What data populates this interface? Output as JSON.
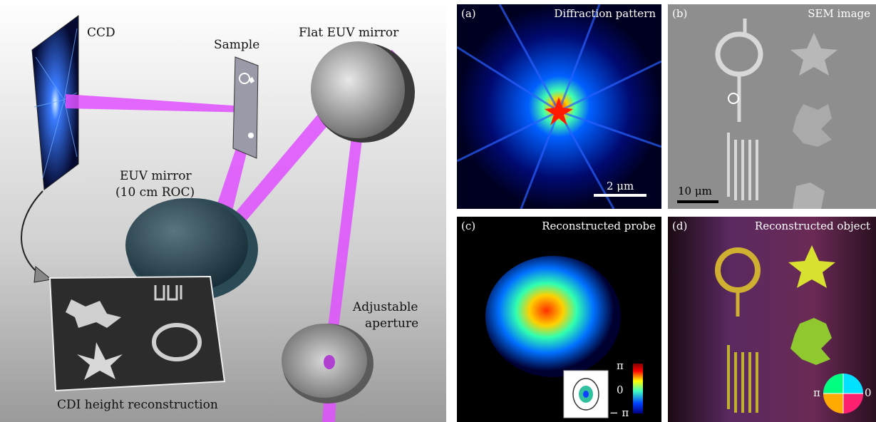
{
  "schematic": {
    "labels": {
      "ccd": "CCD",
      "sample": "Sample",
      "flat_mirror": "Flat EUV mirror",
      "euv_mirror_line1": "EUV mirror",
      "euv_mirror_line2": "(10 cm ROC)",
      "aperture_line1": "Adjustable",
      "aperture_line2": "aperture",
      "cdi": "CDI height reconstruction"
    }
  },
  "panels": {
    "a": {
      "tag": "(a)",
      "title": "Diffraction pattern",
      "scalebar": "2 μm"
    },
    "b": {
      "tag": "(b)",
      "title": "SEM image",
      "scalebar": "10 μm"
    },
    "c": {
      "tag": "(c)",
      "title": "Reconstructed probe",
      "colorbar_top": "π",
      "colorbar_mid": "0",
      "colorbar_bottom": "− π"
    },
    "d": {
      "tag": "(d)",
      "title": "Reconstructed object",
      "wheel_left": "π",
      "wheel_right": "0"
    }
  },
  "colors": {
    "beam": "#e040ff",
    "background_dark": "#000000",
    "sem_gray": "#8a8a8a"
  }
}
